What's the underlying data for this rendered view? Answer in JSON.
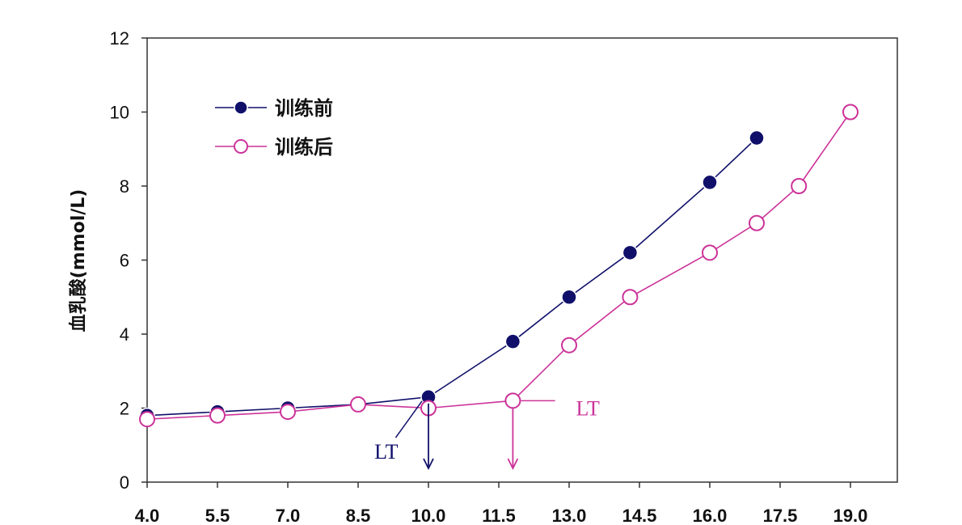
{
  "chart_data": {
    "type": "line",
    "ylabel": "血乳酸(mmol/L)",
    "xlabel": "",
    "xlim": [
      4.0,
      20.0
    ],
    "ylim": [
      0,
      12
    ],
    "x_ticks": [
      "4.0",
      "5.5",
      "7.0",
      "8.5",
      "10.0",
      "11.5",
      "13.0",
      "14.5",
      "16.0",
      "17.5",
      "19.0"
    ],
    "y_ticks": [
      "0",
      "2",
      "4",
      "6",
      "8",
      "10",
      "12"
    ],
    "legend_position": "top-left",
    "grid": false,
    "series": [
      {
        "name": "训练前",
        "color": "#10106b",
        "marker": "filled-circle",
        "x": [
          4.0,
          5.5,
          7.0,
          8.5,
          10.0,
          11.8,
          13.0,
          14.3,
          16.0,
          17.0
        ],
        "y": [
          1.8,
          1.9,
          2.0,
          2.1,
          2.3,
          3.8,
          5.0,
          6.2,
          8.1,
          9.3
        ]
      },
      {
        "name": "训练后",
        "color": "#cc3399",
        "marker": "open-circle",
        "x": [
          4.0,
          5.5,
          7.0,
          8.5,
          10.0,
          11.8,
          13.0,
          14.3,
          16.0,
          17.0,
          17.9,
          19.0
        ],
        "y": [
          1.7,
          1.8,
          1.9,
          2.1,
          2.0,
          2.2,
          3.7,
          5.0,
          6.2,
          7.0,
          8.0,
          10.0
        ]
      }
    ],
    "annotations": [
      {
        "text": "LT",
        "color": "#10106b",
        "series": "训练前",
        "threshold_x": 10.0,
        "threshold_y": 2.3,
        "label_x": 9.1,
        "label_y": 0.85
      },
      {
        "text": "LT",
        "color": "#cc3399",
        "series": "训练后",
        "threshold_x": 11.8,
        "threshold_y": 2.2,
        "label_x": 13.4,
        "label_y": 2.0
      }
    ]
  }
}
